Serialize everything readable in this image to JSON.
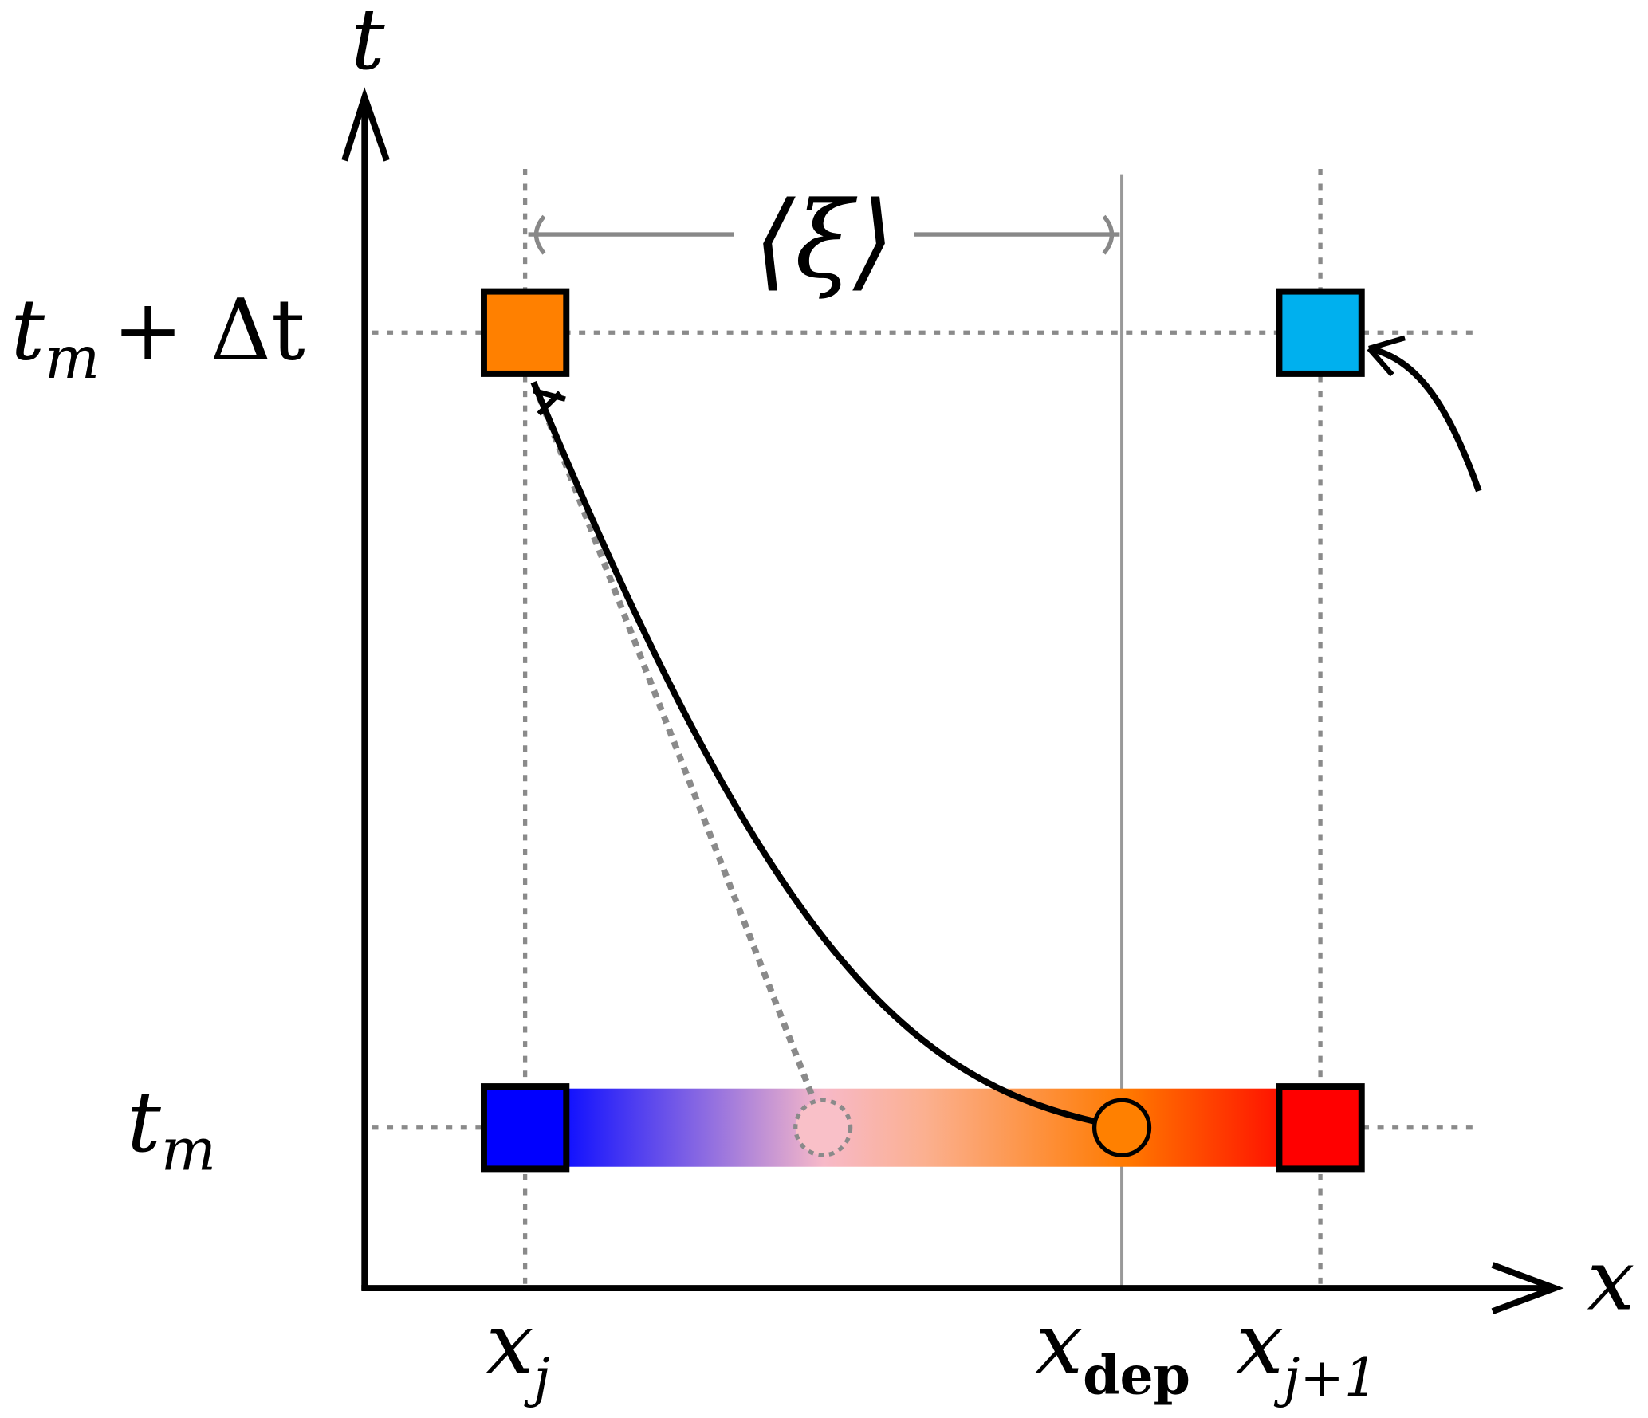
{
  "axes": {
    "x_label": "x",
    "t_label": "t"
  },
  "time_labels": {
    "upper": "t",
    "upper_sub": "m",
    "upper_rest": "+ Δt",
    "lower": "t",
    "lower_sub": "m"
  },
  "x_labels": {
    "xj": "x",
    "xj_sub": "j",
    "xdep": "x",
    "xdep_sub": "dep",
    "xj1": "x",
    "xj1_sub": "j+1"
  },
  "displacement_label": "⟨ξ⟩",
  "colors": {
    "orange_node": "#FF8000",
    "cyan_node": "#00B0EE",
    "blue_node": "#0000FF",
    "red_node": "#FF0000",
    "departure_point": "#FF8000",
    "interp_point": "#F9C0C8",
    "grid": "#8a8a8a"
  }
}
